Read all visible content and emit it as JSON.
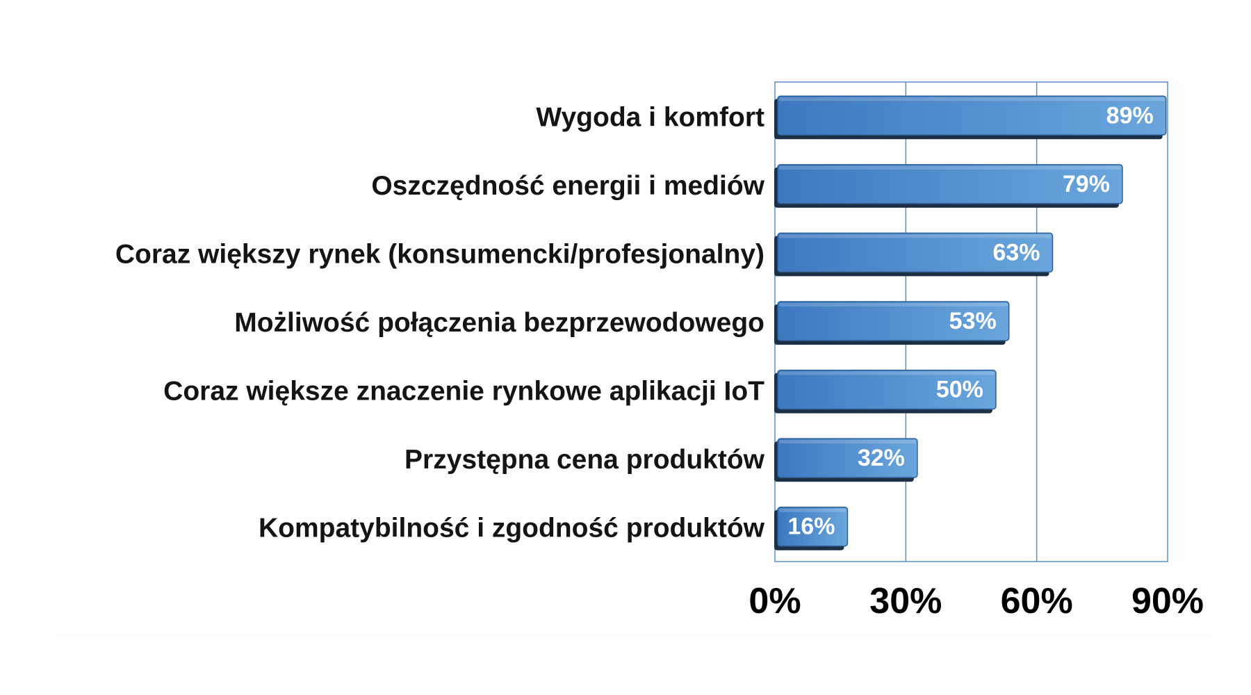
{
  "chart_data": {
    "type": "bar",
    "orientation": "horizontal",
    "categories": [
      "Wygoda i komfort",
      "Oszczędność energii i mediów",
      "Coraz większy rynek (konsumencki/profesjonalny)",
      "Możliwość połączenia bezprzewodowego",
      "Coraz większe znaczenie rynkowe aplikacji IoT",
      "Przystępna cena produktów",
      "Kompatybilność i zgodność produktów"
    ],
    "values": [
      89,
      79,
      63,
      53,
      50,
      32,
      16
    ],
    "value_labels": [
      "89%",
      "79%",
      "63%",
      "53%",
      "50%",
      "32%",
      "16%"
    ],
    "xlim": [
      0,
      90
    ],
    "x_ticks": [
      0,
      30,
      60,
      90
    ],
    "x_tick_labels": [
      "0%",
      "30%",
      "60%",
      "90%"
    ],
    "grid": true,
    "legend": "none",
    "colors": {
      "bar_light": "#6aa6dc",
      "bar_dark": "#3d78c0",
      "bar_edge": "#2f5f96",
      "bar_shadow": "#1d2f44",
      "grid": "#5b8fc9"
    }
  }
}
